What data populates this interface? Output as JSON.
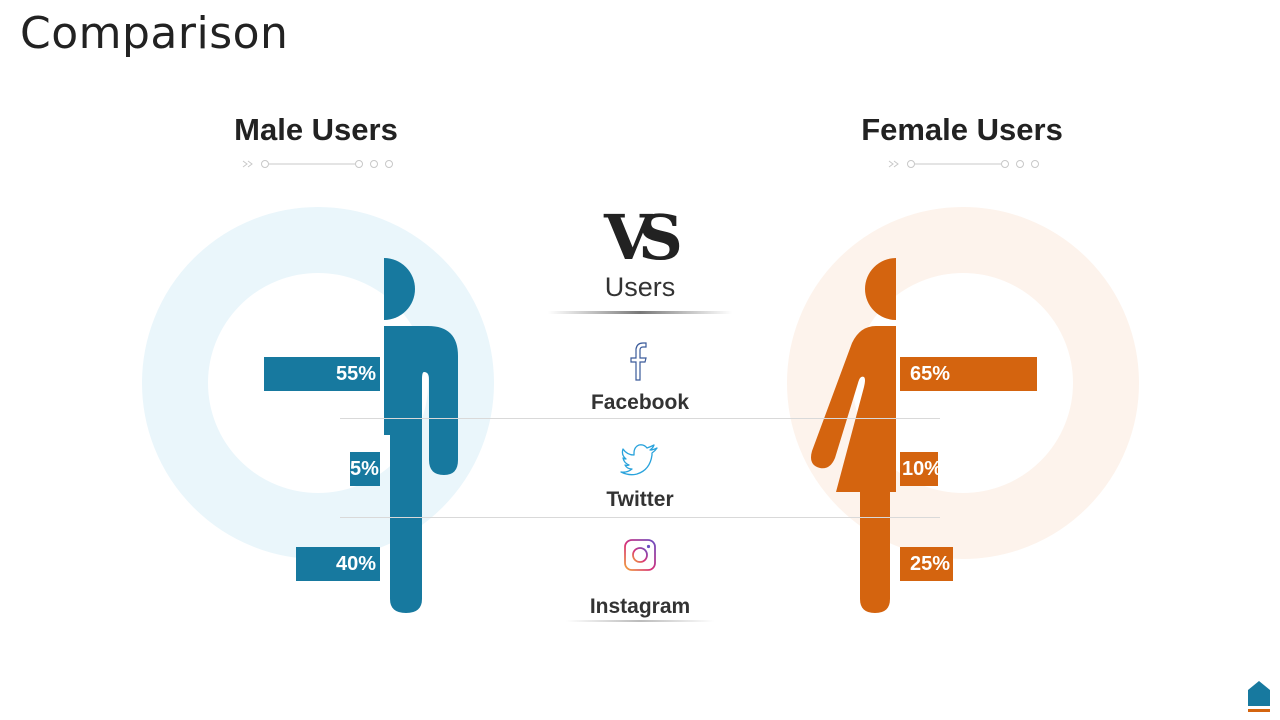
{
  "title": "Comparison",
  "male": {
    "heading": "Male Users",
    "color": "#17799f",
    "ring_color": "#eaf6fb",
    "figure_icon": "male-figure-icon",
    "values": [
      {
        "platform": "Facebook",
        "percent": 55,
        "label": "55%"
      },
      {
        "platform": "Twitter",
        "percent": 5,
        "label": "5%"
      },
      {
        "platform": "Instagram",
        "percent": 40,
        "label": "40%"
      }
    ]
  },
  "female": {
    "heading": "Female Users",
    "color": "#d4640f",
    "ring_color": "#fdf3ec",
    "figure_icon": "female-figure-icon",
    "values": [
      {
        "platform": "Facebook",
        "percent": 65,
        "label": "65%"
      },
      {
        "platform": "Twitter",
        "percent": 10,
        "label": "10%"
      },
      {
        "platform": "Instagram",
        "percent": 25,
        "label": "25%"
      }
    ]
  },
  "center": {
    "logo": "VS",
    "title": "Users",
    "platforms": [
      {
        "name": "Facebook",
        "icon": "facebook-icon"
      },
      {
        "name": "Twitter",
        "icon": "twitter-icon"
      },
      {
        "name": "Instagram",
        "icon": "instagram-icon"
      }
    ]
  },
  "corner_icon": "home-icon",
  "corner_colors": {
    "top": "#17799f",
    "bottom": "#d4640f"
  }
}
